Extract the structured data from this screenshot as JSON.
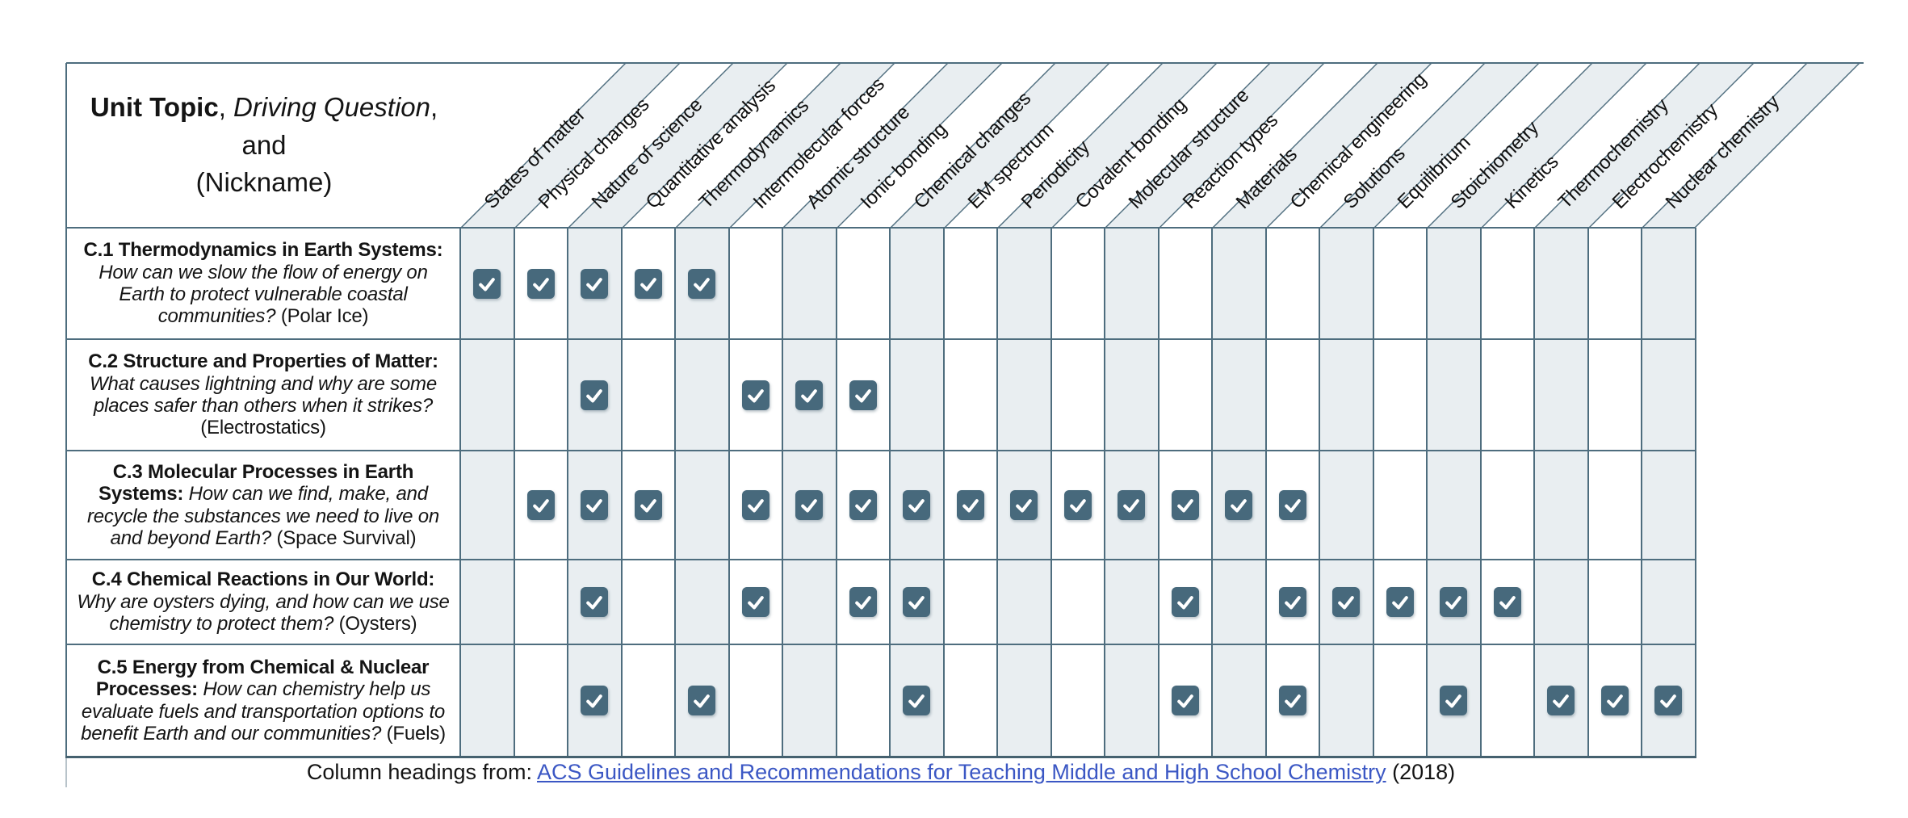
{
  "header": {
    "unit_cell": {
      "bold": "Unit Topic",
      "sep1": ", ",
      "italic": "Driving Question",
      "sep2": ", and",
      "line2": "(Nickname)"
    }
  },
  "columns": [
    "States of matter",
    "Physical changes",
    "Nature of science",
    "Quantitative analysis",
    "Thermodynamics",
    "Intermolecular forces",
    "Atomic structure",
    "Ionic bonding",
    "Chemical changes",
    "EM spectrum",
    "Periodicity",
    "Covalent bonding",
    "Molecular structure",
    "Reaction types",
    "Materials",
    "Chemical engineering",
    "Solutions",
    "Equilibrium",
    "Stoichiometry",
    "Kinetics",
    "Thermochemistry",
    "Electrochemistry",
    "Nuclear chemistry"
  ],
  "rows": [
    {
      "title": "C.1 Thermodynamics in Earth Systems:",
      "question": "How can we slow the flow of energy on Earth to protect vulnerable coastal communities?",
      "nickname": "(Polar Ice)",
      "checked": [
        1,
        2,
        3,
        4,
        5
      ]
    },
    {
      "title": "C.2 Structure and Properties of Matter:",
      "question": "What causes lightning and why are some places safer than others when it strikes?",
      "nickname": "(Electrostatics)",
      "checked": [
        3,
        6,
        7,
        8
      ]
    },
    {
      "title": "C.3 Molecular Processes in Earth Systems:",
      "question": "How can we find, make, and recycle the substances we need to live on and beyond Earth?",
      "nickname": "(Space Survival)",
      "checked": [
        2,
        3,
        4,
        6,
        7,
        8,
        9,
        10,
        11,
        12,
        13,
        14,
        15,
        16
      ]
    },
    {
      "title": "C.4 Chemical Reactions in Our World:",
      "question": "Why are oysters dying, and how can we use chemistry to protect them?",
      "nickname": "(Oysters)",
      "checked": [
        3,
        6,
        8,
        9,
        14,
        16,
        17,
        18,
        19,
        20
      ]
    },
    {
      "title": "C.5 Energy from Chemical & Nuclear Processes:",
      "question": "How can chemistry help us evaluate fuels and transportation options to benefit Earth and our communities?",
      "nickname": "(Fuels)",
      "checked": [
        3,
        5,
        9,
        14,
        16,
        19,
        21,
        22,
        23
      ]
    }
  ],
  "caption": {
    "prefix": "Column headings from: ",
    "link_text": "ACS Guidelines and Recommendations for Teaching Middle and High School Chemistry",
    "suffix": " (2018)"
  },
  "colors": {
    "grid_line": "#4e6d7e",
    "outer_border": "#45616f",
    "shaded_column": "#e9eef1",
    "checkbox_fill": "#47697c",
    "checkmark": "#ffffff",
    "link_blue": "#3b57c4",
    "text": "#141414"
  }
}
